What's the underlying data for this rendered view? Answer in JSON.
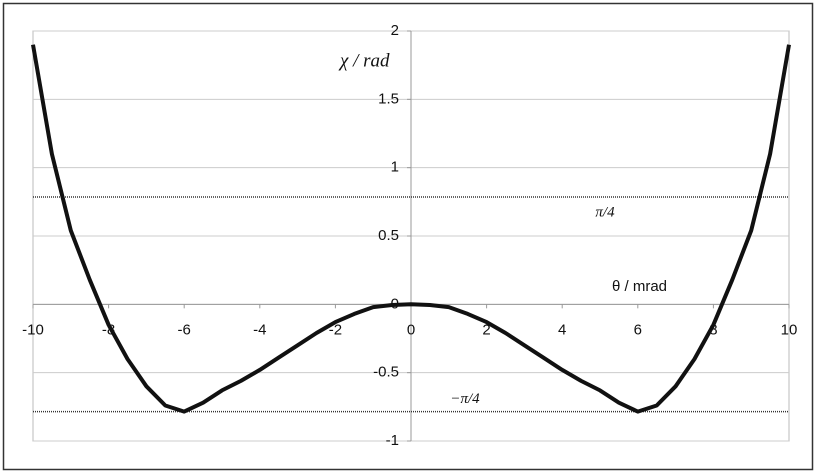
{
  "chart_data": {
    "type": "line",
    "y_label": "χ / rad",
    "x_label": "θ / mrad",
    "x": [
      -10,
      -9.5,
      -9,
      -8.5,
      -8,
      -7.5,
      -7,
      -6.5,
      -6,
      -5.5,
      -5,
      -4.5,
      -4,
      -3.5,
      -3,
      -2.5,
      -2,
      -1.5,
      -1,
      -0.5,
      0,
      0.5,
      1,
      1.5,
      2,
      2.5,
      3,
      3.5,
      4,
      4.5,
      5,
      5.5,
      6,
      6.5,
      7,
      7.5,
      8,
      8.5,
      9,
      9.5,
      10
    ],
    "series": [
      {
        "color": "#111111",
        "values": [
          1.9,
          1.1,
          0.54,
          0.18,
          -0.15,
          -0.4,
          -0.6,
          -0.74,
          -0.785,
          -0.72,
          -0.63,
          -0.56,
          -0.48,
          -0.39,
          -0.3,
          -0.21,
          -0.13,
          -0.07,
          -0.02,
          -0.005,
          0,
          -0.005,
          -0.02,
          -0.07,
          -0.13,
          -0.21,
          -0.3,
          -0.39,
          -0.48,
          -0.56,
          -0.63,
          -0.72,
          -0.785,
          -0.74,
          -0.6,
          -0.4,
          -0.15,
          0.18,
          0.54,
          1.1,
          1.9
        ]
      }
    ],
    "reference_lines": [
      {
        "label": "π/4",
        "value": 0.785
      },
      {
        "label": "−π/4",
        "value": -0.785
      }
    ],
    "xlim": [
      -10,
      10
    ],
    "ylim": [
      -1,
      2
    ],
    "xticks": [
      -10,
      -8,
      -6,
      -4,
      -2,
      0,
      2,
      4,
      6,
      8,
      10
    ],
    "yticks": [
      -1,
      -0.5,
      0,
      0.5,
      1,
      1.5,
      2
    ],
    "grid": true
  }
}
